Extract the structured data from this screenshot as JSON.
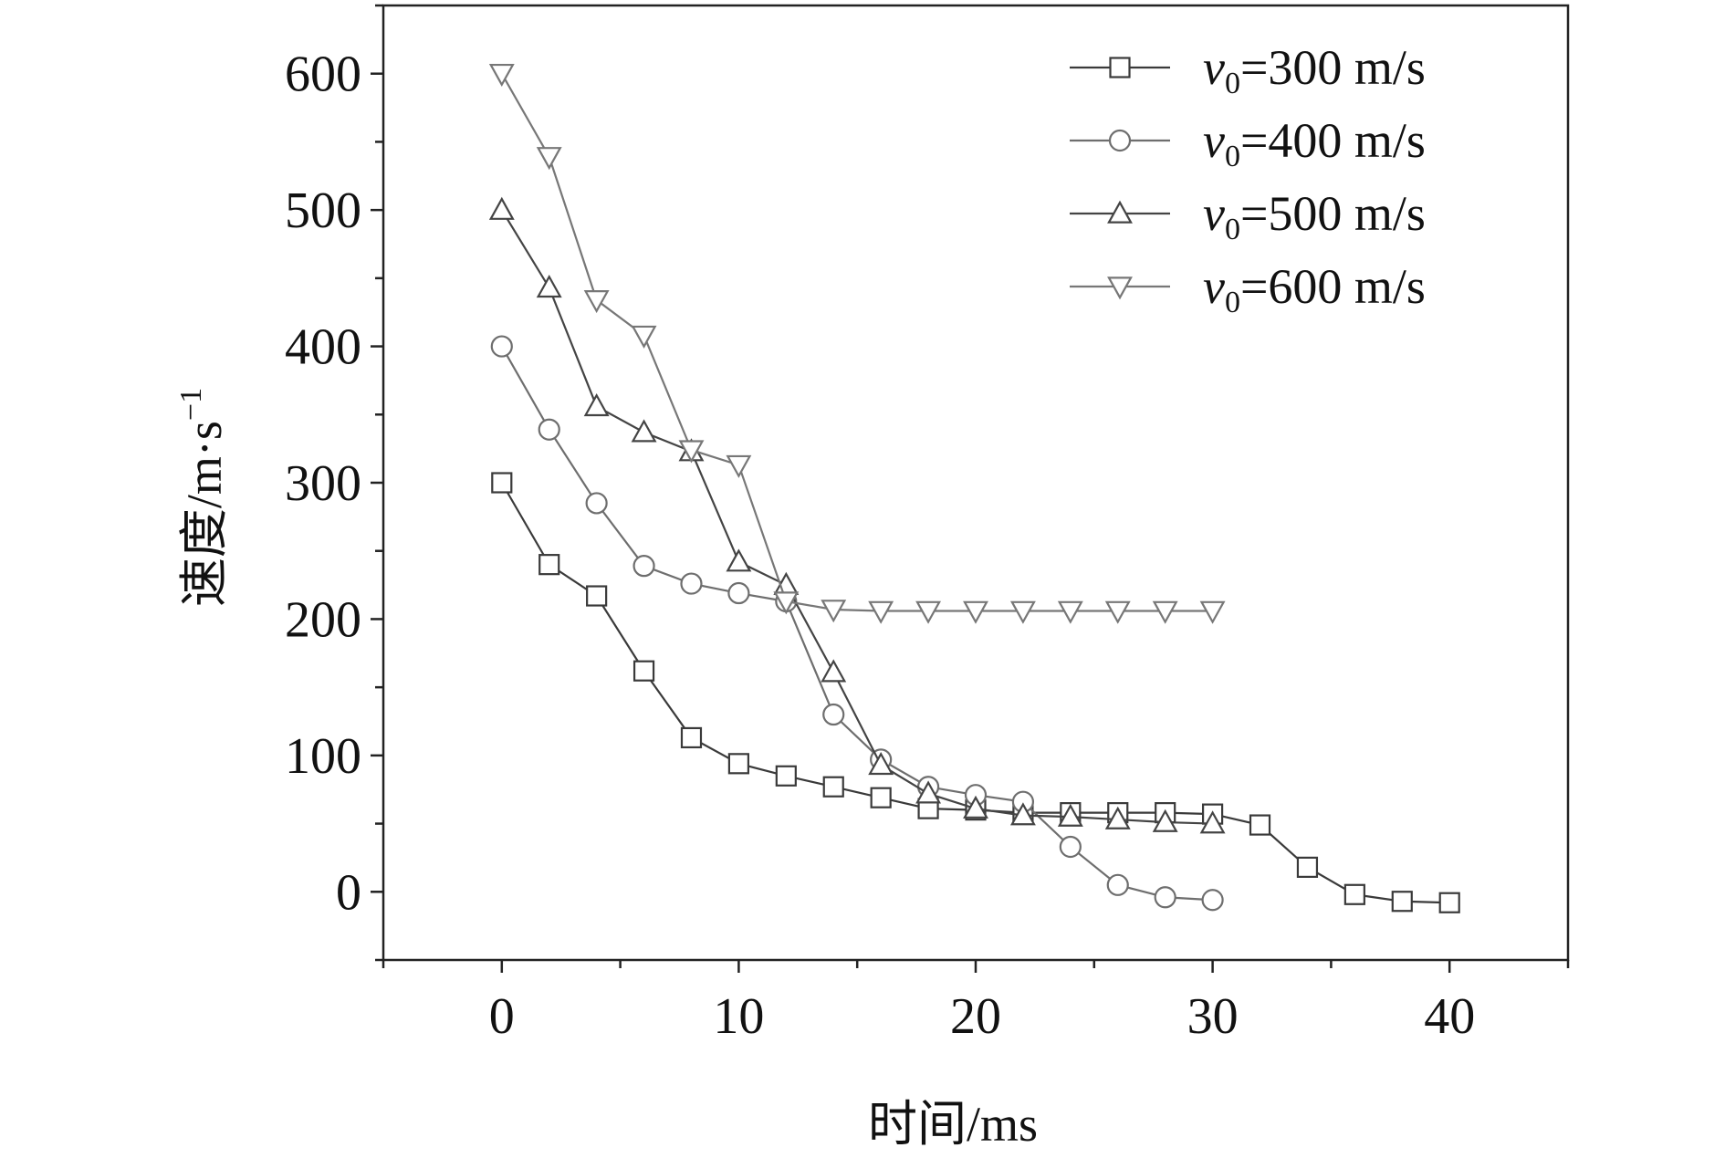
{
  "chart_data": {
    "type": "line",
    "title": "",
    "xlabel": "时间/ms",
    "ylabel": "速度/m·s",
    "ylabel_superscript": "−1",
    "xlim": [
      -5,
      45
    ],
    "ylim": [
      -50,
      650
    ],
    "xticks": [
      0,
      10,
      20,
      30,
      40
    ],
    "yticks": [
      0,
      100,
      200,
      300,
      400,
      500,
      600
    ],
    "grid": false,
    "legend_position": "top-right",
    "series": [
      {
        "name": "300 m/s",
        "legend_prefix": "v",
        "legend_subscript": "0",
        "legend_eq": "=",
        "marker": "square",
        "color": "#3a3a3a",
        "x": [
          0,
          2,
          4,
          6,
          8,
          10,
          12,
          14,
          16,
          18,
          20,
          22,
          24,
          26,
          28,
          30,
          32,
          34,
          36,
          38,
          40
        ],
        "y": [
          300,
          240,
          217,
          162,
          113,
          94,
          85,
          77,
          69,
          61,
          60,
          58,
          58,
          58,
          58,
          57,
          49,
          18,
          -2,
          -7,
          -8
        ]
      },
      {
        "name": "400 m/s",
        "legend_prefix": "v",
        "legend_subscript": "0",
        "legend_eq": "=",
        "marker": "circle",
        "color": "#6e6e6e",
        "x": [
          0,
          2,
          4,
          6,
          8,
          10,
          12,
          14,
          16,
          18,
          20,
          22,
          24,
          26,
          28,
          30
        ],
        "y": [
          400,
          339,
          285,
          239,
          226,
          219,
          213,
          130,
          97,
          77,
          71,
          66,
          33,
          5,
          -4,
          -6
        ]
      },
      {
        "name": "500 m/s",
        "legend_prefix": "v",
        "legend_subscript": "0",
        "legend_eq": "=",
        "marker": "triangle-up",
        "color": "#444444",
        "x": [
          0,
          2,
          4,
          6,
          8,
          10,
          12,
          14,
          16,
          18,
          20,
          22,
          24,
          26,
          28,
          30
        ],
        "y": [
          500,
          443,
          356,
          337,
          323,
          242,
          225,
          161,
          93,
          72,
          61,
          56,
          55,
          53,
          51,
          50
        ]
      },
      {
        "name": "600 m/s",
        "legend_prefix": "v",
        "legend_subscript": "0",
        "legend_eq": "=",
        "marker": "triangle-down",
        "color": "#777777",
        "x": [
          0,
          2,
          4,
          6,
          8,
          10,
          12,
          14,
          16,
          18,
          20,
          22,
          24,
          26,
          28,
          30
        ],
        "y": [
          600,
          539,
          434,
          408,
          324,
          313,
          213,
          207,
          206,
          206,
          206,
          206,
          206,
          206,
          206,
          206
        ]
      }
    ]
  }
}
